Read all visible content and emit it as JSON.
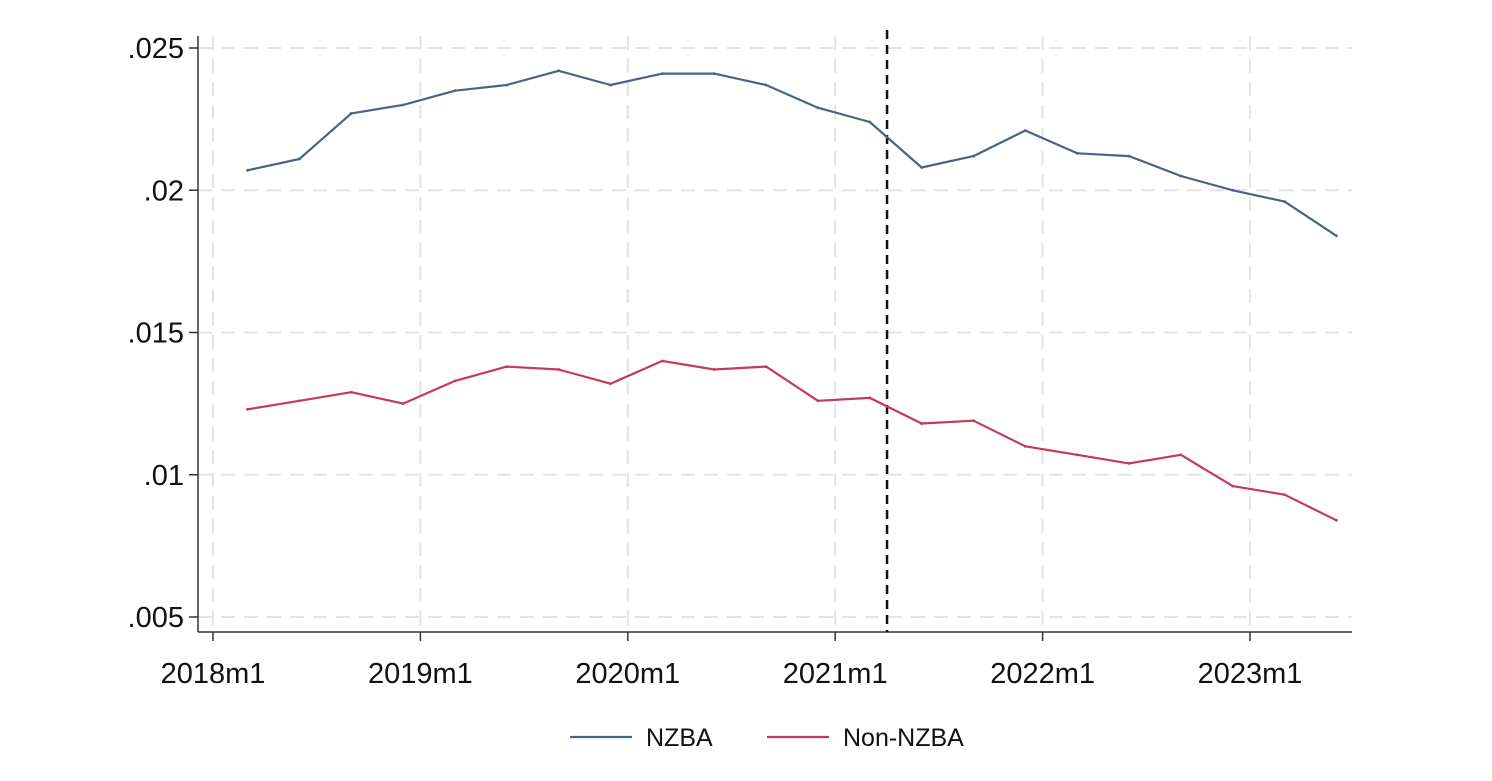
{
  "chart_data": {
    "type": "line",
    "title": "",
    "xlabel": "",
    "ylabel": "",
    "x": [
      "2018m3",
      "2018m6",
      "2018m9",
      "2018m12",
      "2019m3",
      "2019m6",
      "2019m9",
      "2019m12",
      "2020m3",
      "2020m6",
      "2020m9",
      "2020m12",
      "2021m3",
      "2021m6",
      "2021m9",
      "2021m12",
      "2022m3",
      "2022m6",
      "2022m9",
      "2022m12",
      "2023m3",
      "2023m6"
    ],
    "x_ticks": [
      "2018m1",
      "2019m1",
      "2020m1",
      "2021m1",
      "2022m1",
      "2023m1"
    ],
    "y_ticks": [
      ".005",
      ".01",
      ".015",
      ".02",
      ".025"
    ],
    "ylim": [
      0.005,
      0.025
    ],
    "series": [
      {
        "name": "NZBA",
        "color": "#4a6584",
        "values": [
          0.0207,
          0.0211,
          0.0227,
          0.023,
          0.0235,
          0.0237,
          0.0242,
          0.0237,
          0.0241,
          0.0241,
          0.0237,
          0.0229,
          0.0224,
          0.0208,
          0.0212,
          0.0221,
          0.0213,
          0.0212,
          0.0205,
          0.02,
          0.0196,
          0.0184
        ]
      },
      {
        "name": "Non-NZBA",
        "color": "#c33a5a",
        "values": [
          0.0123,
          0.0126,
          0.0129,
          0.0125,
          0.0133,
          0.0138,
          0.0137,
          0.0132,
          0.014,
          0.0137,
          0.0138,
          0.0126,
          0.0127,
          0.0118,
          0.0119,
          0.011,
          0.0107,
          0.0104,
          0.0107,
          0.0096,
          0.0093,
          0.0084
        ]
      }
    ],
    "event_line": {
      "x": "2021m4",
      "style": "dashed",
      "color": "#111111"
    },
    "grid": true,
    "legend_position": "bottom-center"
  }
}
